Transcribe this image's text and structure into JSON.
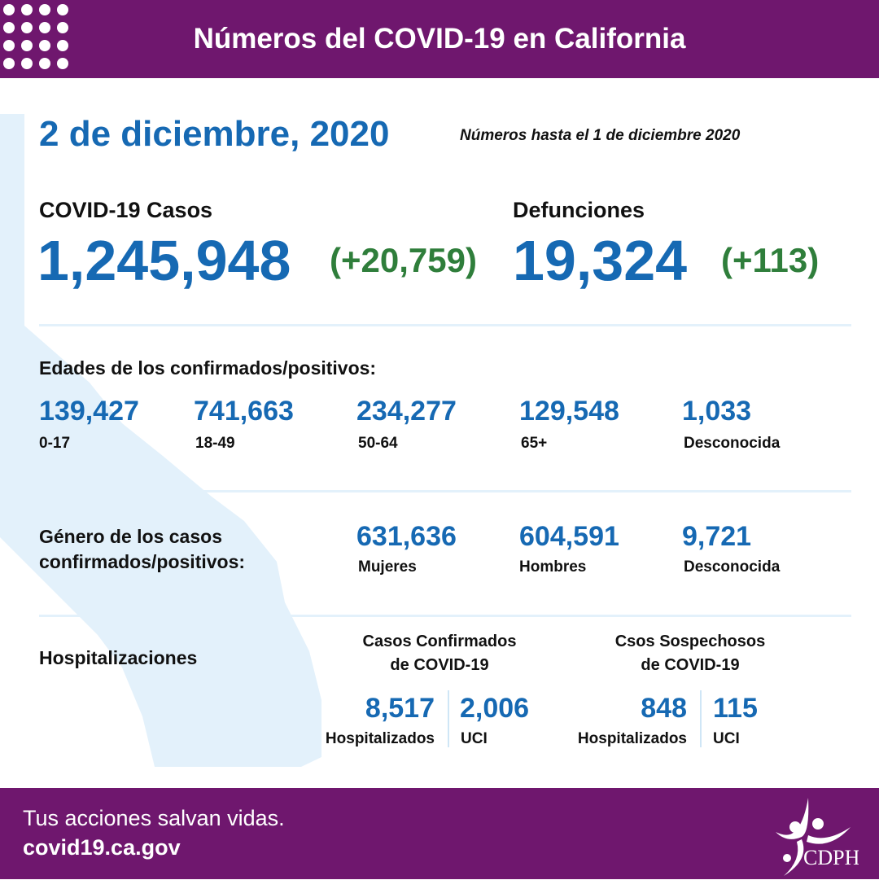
{
  "header": {
    "title": "Números del COVID-19 en California"
  },
  "colors": {
    "purple": "#6f176e",
    "blue": "#1669b3",
    "green": "#2f7e3b",
    "map": "#e3f1fb"
  },
  "date": "2 de diciembre, 2020",
  "as_of": "Números hasta el 1 de diciembre 2020",
  "cases": {
    "label": "COVID-19 Casos",
    "value": "1,245,948",
    "change": "(+20,759)"
  },
  "deaths": {
    "label": "Defunciones",
    "value": "19,324",
    "change": "(+113)"
  },
  "ages": {
    "title": "Edades de los confirmados/positivos:",
    "items": [
      {
        "value": "139,427",
        "label": "0-17"
      },
      {
        "value": "741,663",
        "label": "18-49"
      },
      {
        "value": "234,277",
        "label": "50-64"
      },
      {
        "value": "129,548",
        "label": "65+"
      },
      {
        "value": "1,033",
        "label": "Desconocida"
      }
    ]
  },
  "gender": {
    "title_line1": "Género de los casos",
    "title_line2": "confirmados/positivos:",
    "items": [
      {
        "value": "631,636",
        "label": "Mujeres"
      },
      {
        "value": "604,591",
        "label": "Hombres"
      },
      {
        "value": "9,721",
        "label": "Desconocida"
      }
    ]
  },
  "hosp": {
    "title": "Hospitalizaciones",
    "confirmed": {
      "line1": "Casos Confirmados",
      "line2": "de COVID-19",
      "hospitalized": "8,517",
      "hospitalized_label": "Hospitalizados",
      "icu": "2,006",
      "icu_label": "UCI"
    },
    "suspected": {
      "line1": "Csos Sospechosos",
      "line2": "de COVID-19",
      "hospitalized": "848",
      "hospitalized_label": "Hospitalizados",
      "icu": "115",
      "icu_label": "UCI"
    }
  },
  "footer": {
    "tagline": "Tus acciones salvan vidas.",
    "url": "covid19.ca.gov",
    "logo_text": "CDPH"
  }
}
